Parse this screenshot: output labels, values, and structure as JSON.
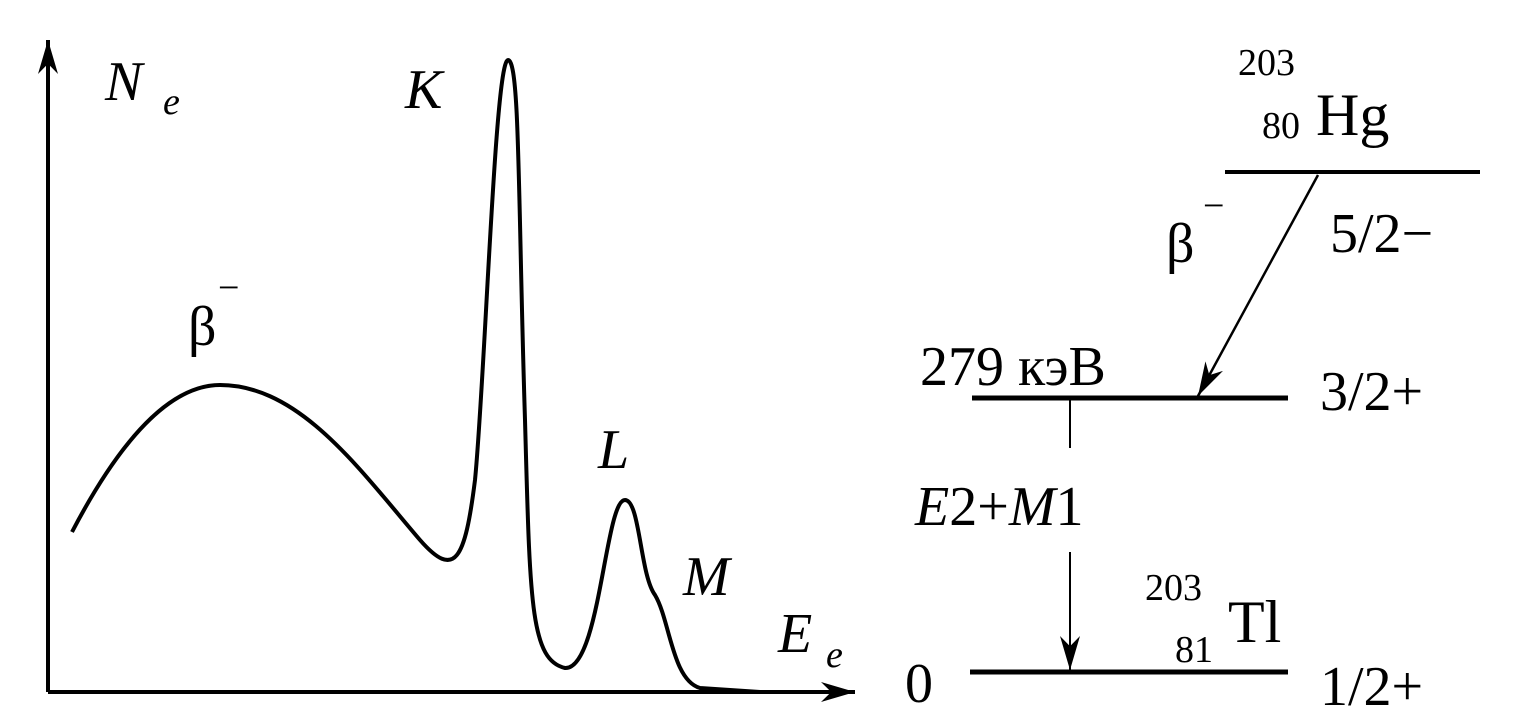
{
  "spectrum": {
    "y_axis": {
      "symbol": "N",
      "subscript": "e"
    },
    "x_axis": {
      "symbol": "E",
      "subscript": "e"
    },
    "peaks": {
      "beta": {
        "symbol": "β",
        "superscript": "−"
      },
      "k": "K",
      "l": "L",
      "m": "M"
    }
  },
  "decay_scheme": {
    "parent": {
      "mass": "203",
      "atomic": "80",
      "symbol": "Hg",
      "spin": "5/2−"
    },
    "decay": {
      "symbol": "β",
      "superscript": "−"
    },
    "excited_level": {
      "energy": "279 кэВ",
      "spin": "3/2+"
    },
    "transition": [
      "E",
      "2+",
      "M",
      "1"
    ],
    "ground_level": {
      "energy": "0",
      "spin": "1/2+",
      "nucleus": {
        "mass": "203",
        "atomic": "81",
        "symbol": "Tl"
      }
    }
  }
}
